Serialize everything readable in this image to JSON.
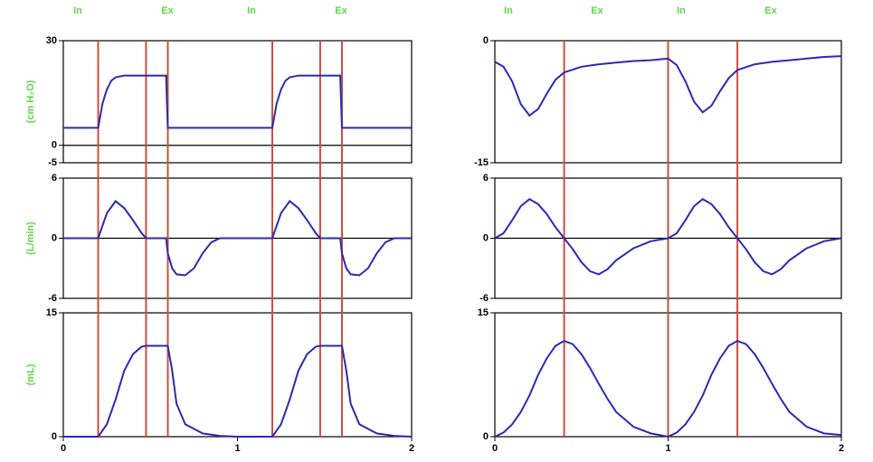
{
  "chart_data": [
    {
      "type": "line",
      "ylabel": "(cm H₂O)",
      "color": "#2b2bb0",
      "marker_color": "#c9503e",
      "zero_line": true,
      "phase_labels": [
        "In",
        "Ex",
        "In",
        "Ex"
      ],
      "markers": [
        0.2,
        0.475,
        0.6,
        1.2,
        1.475,
        1.6
      ],
      "xlim": [
        0,
        2
      ],
      "ylim": [
        -5,
        30
      ],
      "yticks": [
        30,
        0,
        -5
      ],
      "x": [
        0,
        0.2,
        0.225,
        0.25,
        0.275,
        0.3,
        0.35,
        0.59,
        0.6,
        1.2,
        1.225,
        1.25,
        1.275,
        1.3,
        1.35,
        1.59,
        1.6,
        2
      ],
      "values": [
        5,
        5,
        12,
        16,
        18.5,
        19.5,
        20,
        20,
        5,
        5,
        12,
        16,
        18.5,
        19.5,
        20,
        20,
        5,
        5
      ]
    },
    {
      "type": "line",
      "ylabel": "(L/min)",
      "color": "#2b2bb0",
      "zero_line": true,
      "xlim": [
        0,
        2
      ],
      "ylim": [
        -6,
        6
      ],
      "yticks": [
        6,
        0,
        -6
      ],
      "x": [
        0,
        0.2,
        0.25,
        0.3,
        0.35,
        0.4,
        0.45,
        0.475,
        0.59,
        0.6,
        0.625,
        0.65,
        0.7,
        0.75,
        0.8,
        0.85,
        0.9,
        1.2,
        1.25,
        1.3,
        1.35,
        1.4,
        1.45,
        1.475,
        1.59,
        1.6,
        1.625,
        1.65,
        1.7,
        1.75,
        1.8,
        1.85,
        1.9,
        2
      ],
      "values": [
        0,
        0,
        2.5,
        3.7,
        3,
        1.8,
        0.5,
        0,
        0,
        -1.5,
        -3,
        -3.6,
        -3.7,
        -3,
        -1.5,
        -0.4,
        0,
        0,
        2.5,
        3.7,
        3,
        1.8,
        0.5,
        0,
        0,
        -1.5,
        -3,
        -3.6,
        -3.7,
        -3,
        -1.5,
        -0.4,
        0,
        0
      ]
    },
    {
      "type": "line",
      "ylabel": "(mL)",
      "color": "#2b2bb0",
      "zero_line": false,
      "xlim": [
        0,
        2
      ],
      "ylim": [
        0,
        15
      ],
      "yticks": [
        15,
        0
      ],
      "xticks": [
        0,
        1,
        2
      ],
      "x": [
        0,
        0.2,
        0.25,
        0.3,
        0.35,
        0.4,
        0.45,
        0.475,
        0.6,
        0.625,
        0.65,
        0.7,
        0.8,
        0.9,
        1,
        1.2,
        1.25,
        1.3,
        1.35,
        1.4,
        1.45,
        1.475,
        1.6,
        1.625,
        1.65,
        1.7,
        1.8,
        1.9,
        2
      ],
      "values": [
        0,
        0,
        1.5,
        4.5,
        8,
        10,
        10.9,
        11,
        11,
        8,
        4,
        1.5,
        0.4,
        0.1,
        0,
        0,
        1.5,
        4.5,
        8,
        10,
        10.9,
        11,
        11,
        8,
        4,
        1.5,
        0.4,
        0.1,
        0
      ]
    },
    {
      "type": "line",
      "color": "#2b2bb0",
      "marker_color": "#c9503e",
      "zero_line": false,
      "phase_labels": [
        "In",
        "Ex",
        "In",
        "Ex"
      ],
      "markers": [
        0.4,
        1,
        1.4
      ],
      "xlim": [
        0,
        2
      ],
      "ylim": [
        -15,
        0
      ],
      "yticks": [
        0,
        -15
      ],
      "x": [
        0,
        0.05,
        0.1,
        0.15,
        0.2,
        0.25,
        0.3,
        0.35,
        0.4,
        0.5,
        0.6,
        0.7,
        0.8,
        0.9,
        1,
        1.05,
        1.1,
        1.15,
        1.2,
        1.25,
        1.3,
        1.35,
        1.4,
        1.5,
        1.6,
        1.7,
        1.8,
        1.9,
        2
      ],
      "values": [
        -2.6,
        -3.2,
        -5,
        -7.8,
        -9.2,
        -8.4,
        -6.5,
        -4.8,
        -3.9,
        -3.2,
        -2.9,
        -2.7,
        -2.5,
        -2.4,
        -2.2,
        -3,
        -5,
        -7.5,
        -8.8,
        -8,
        -6.2,
        -4.6,
        -3.6,
        -2.9,
        -2.6,
        -2.4,
        -2.2,
        -2,
        -1.9
      ]
    },
    {
      "type": "line",
      "color": "#2b2bb0",
      "zero_line": true,
      "xlim": [
        0,
        2
      ],
      "ylim": [
        -6,
        6
      ],
      "yticks": [
        6,
        0,
        -6
      ],
      "x": [
        0,
        0.05,
        0.1,
        0.15,
        0.2,
        0.25,
        0.3,
        0.35,
        0.4,
        0.45,
        0.5,
        0.55,
        0.6,
        0.65,
        0.7,
        0.8,
        0.9,
        1,
        1.05,
        1.1,
        1.15,
        1.2,
        1.25,
        1.3,
        1.35,
        1.4,
        1.45,
        1.5,
        1.55,
        1.6,
        1.65,
        1.7,
        1.8,
        1.9,
        2
      ],
      "values": [
        0,
        0.5,
        1.8,
        3.2,
        3.9,
        3.4,
        2.4,
        1.1,
        0,
        -1.1,
        -2.4,
        -3.3,
        -3.6,
        -3.1,
        -2.2,
        -1,
        -0.3,
        0,
        0.5,
        1.8,
        3.2,
        3.9,
        3.4,
        2.4,
        1.1,
        0,
        -1.1,
        -2.4,
        -3.3,
        -3.6,
        -3.1,
        -2.2,
        -1,
        -0.3,
        0
      ]
    },
    {
      "type": "line",
      "color": "#2b2bb0",
      "zero_line": false,
      "xlim": [
        0,
        2
      ],
      "ylim": [
        0,
        15
      ],
      "yticks": [
        15,
        0
      ],
      "xticks": [
        0,
        1,
        2
      ],
      "x": [
        0,
        0.05,
        0.1,
        0.15,
        0.2,
        0.25,
        0.3,
        0.35,
        0.4,
        0.45,
        0.5,
        0.55,
        0.6,
        0.65,
        0.7,
        0.8,
        0.9,
        1,
        1.05,
        1.1,
        1.15,
        1.2,
        1.25,
        1.3,
        1.35,
        1.4,
        1.45,
        1.5,
        1.55,
        1.6,
        1.65,
        1.7,
        1.8,
        1.9,
        2
      ],
      "values": [
        0,
        0.5,
        1.5,
        3,
        5,
        7.5,
        9.5,
        11,
        11.6,
        11.2,
        10,
        8.3,
        6.4,
        4.6,
        3,
        1.2,
        0.4,
        0,
        0.5,
        1.5,
        3,
        5,
        7.5,
        9.5,
        11,
        11.6,
        11.2,
        10,
        8.3,
        6.4,
        4.6,
        3,
        1.2,
        0.4,
        0.2
      ]
    }
  ]
}
